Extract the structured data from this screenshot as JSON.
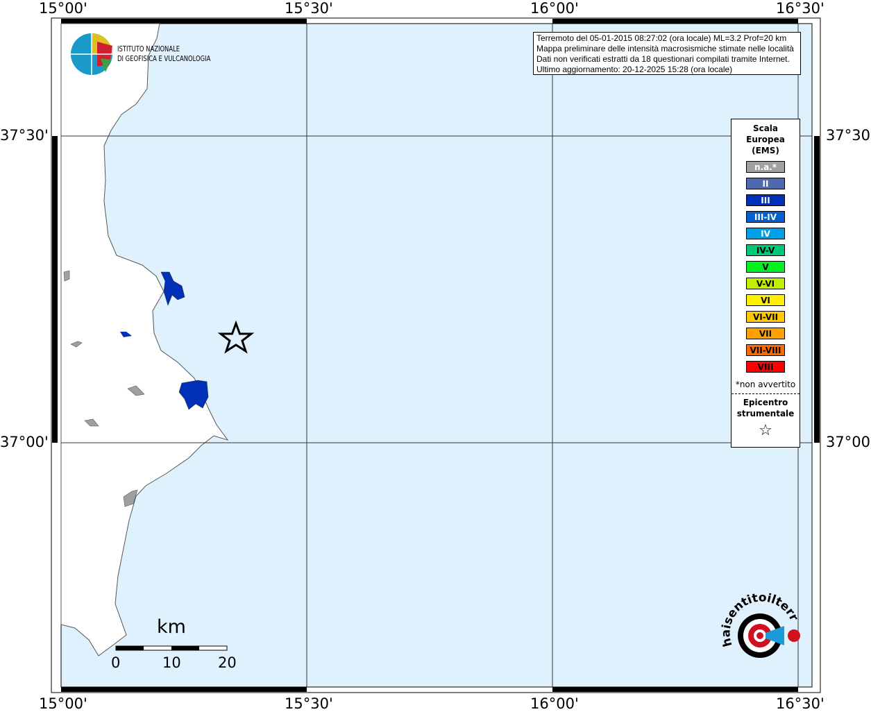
{
  "map": {
    "lon_ticks": [
      "15°00'",
      "15°30'",
      "16°00'",
      "16°30'"
    ],
    "lat_ticks": [
      "37°30'",
      "37°00'"
    ],
    "sea_color": "#dff1fc",
    "land_color": "#ffffff"
  },
  "logo": {
    "line1": "ISTITUTO NAZIONALE",
    "line2": "DI GEOFISICA E VULCANOLOGIA"
  },
  "info": {
    "lines": [
      "Terremoto del 05-01-2015 08:27:02 (ora locale) ML=3.2 Prof=20 km",
      "Mappa preliminare delle intensità macrosismiche stimate nelle località",
      "Dati non verificati estratti da 18 questionari compilati tramite Internet.",
      "Ultimo aggiornamento: 20-12-2025 15:28 (ora locale)"
    ]
  },
  "legend": {
    "title": [
      "Scala",
      "Europea",
      "(EMS)"
    ],
    "items": [
      {
        "label": "n.a.*",
        "color": "#a0a0a0",
        "text": "#ffffff"
      },
      {
        "label": "II",
        "color": "#5068b0",
        "text": "#ffffff"
      },
      {
        "label": "III",
        "color": "#0030b8",
        "text": "#ffffff"
      },
      {
        "label": "III-IV",
        "color": "#0060d0",
        "text": "#ffffff"
      },
      {
        "label": "IV",
        "color": "#00a0e8",
        "text": "#ffffff"
      },
      {
        "label": "IV-V",
        "color": "#00c878",
        "text": "#000000"
      },
      {
        "label": "V",
        "color": "#00f020",
        "text": "#000000"
      },
      {
        "label": "V-VI",
        "color": "#c0f000",
        "text": "#000000"
      },
      {
        "label": "VI",
        "color": "#fff000",
        "text": "#000000"
      },
      {
        "label": "VI-VII",
        "color": "#ffc800",
        "text": "#000000"
      },
      {
        "label": "VII",
        "color": "#ffa000",
        "text": "#000000"
      },
      {
        "label": "VII-VIII",
        "color": "#ff6a00",
        "text": "#000000"
      },
      {
        "label": "VIII",
        "color": "#ff0000",
        "text": "#000000"
      }
    ],
    "note": "*non avvertito",
    "epicentre": [
      "Epicentro",
      "strumentale"
    ],
    "star": "☆"
  },
  "scalebar": {
    "unit": "km",
    "labels": [
      "0",
      "10",
      "20"
    ]
  },
  "hsit_logo": "haisentitoilterremoto.it www"
}
